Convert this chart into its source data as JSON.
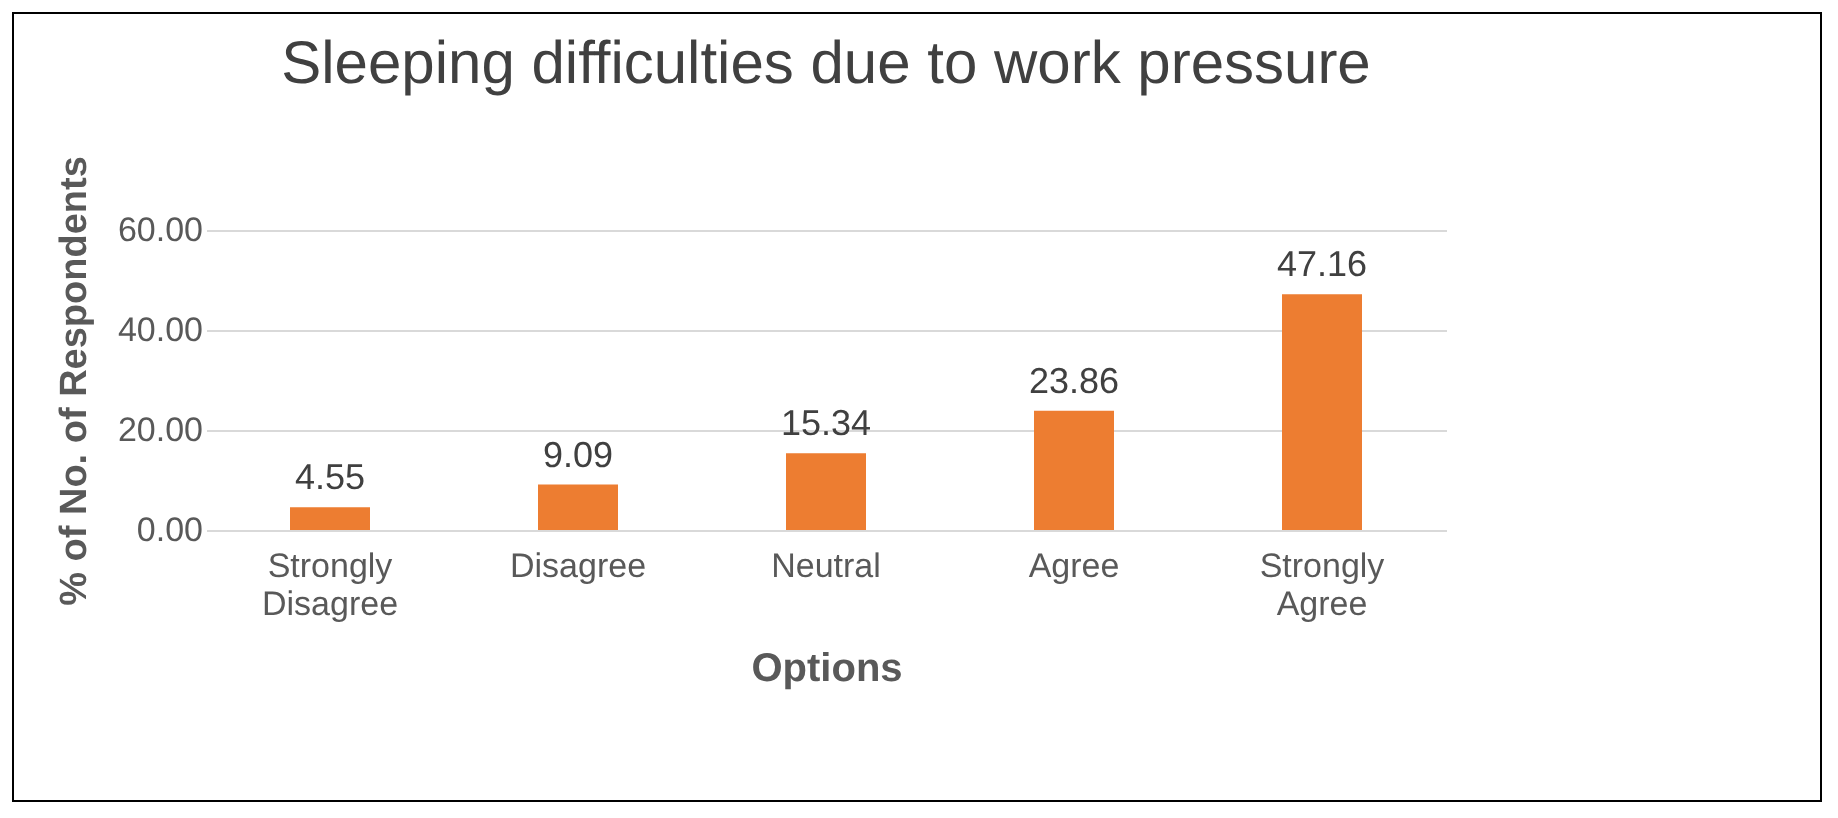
{
  "chart_data": {
    "type": "bar",
    "title": "Sleeping difficulties due to work pressure",
    "xlabel": "Options",
    "ylabel": "% of No. of Respondents",
    "categories": [
      "Strongly Disagree",
      "Disagree",
      "Neutral",
      "Agree",
      "Strongly Agree"
    ],
    "values": [
      4.55,
      9.09,
      15.34,
      23.86,
      47.16
    ],
    "color": "#ed7d31",
    "ylim": [
      0,
      60
    ],
    "yticks": [
      {
        "value": 0,
        "label": "0.00"
      },
      {
        "value": 20,
        "label": "20.00"
      },
      {
        "value": 40,
        "label": "40.00"
      },
      {
        "value": 60,
        "label": "60.00"
      }
    ],
    "grid": "y",
    "data_labels": true
  }
}
